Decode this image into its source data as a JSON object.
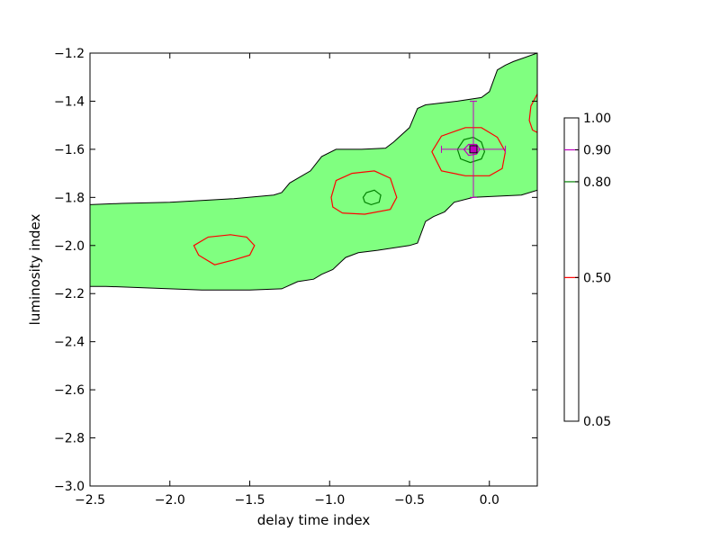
{
  "chart_data": {
    "type": "contour",
    "xlabel": "delay time index",
    "ylabel": "luminosity index",
    "xlim": [
      -2.5,
      0.3
    ],
    "ylim": [
      -3.0,
      -1.2
    ],
    "xticks": [
      -2.5,
      -2.0,
      -1.5,
      -1.0,
      -0.5,
      0.0
    ],
    "xtick_labels": [
      "−2.5",
      "−2.0",
      "−1.5",
      "−1.0",
      "−0.5",
      "0.0"
    ],
    "yticks": [
      -1.2,
      -1.4,
      -1.6,
      -1.8,
      -2.0,
      -2.2,
      -2.4,
      -2.6,
      -2.8,
      -3.0
    ],
    "ytick_labels": [
      "−1.2",
      "−1.4",
      "−1.6",
      "−1.8",
      "−2.0",
      "−2.2",
      "−2.4",
      "−2.6",
      "−2.8",
      "−3.0"
    ],
    "fill_color": "#80ff80",
    "levels": [
      {
        "level": 0.05,
        "color": "#000000",
        "fill": "#80ff80"
      },
      {
        "level": 0.5,
        "color": "#ff0000"
      },
      {
        "level": 0.8,
        "color": "#008000"
      },
      {
        "level": 0.9,
        "color": "#bf00bf"
      }
    ],
    "contours": {
      "outer_upper": [
        [
          -2.5,
          -1.83
        ],
        [
          -2.3,
          -1.825
        ],
        [
          -2.0,
          -1.82
        ],
        [
          -1.6,
          -1.805
        ],
        [
          -1.35,
          -1.79
        ],
        [
          -1.3,
          -1.78
        ],
        [
          -1.25,
          -1.74
        ],
        [
          -1.12,
          -1.69
        ],
        [
          -1.05,
          -1.63
        ],
        [
          -0.96,
          -1.6
        ],
        [
          -0.8,
          -1.6
        ],
        [
          -0.65,
          -1.595
        ],
        [
          -0.6,
          -1.57
        ],
        [
          -0.5,
          -1.51
        ],
        [
          -0.45,
          -1.43
        ],
        [
          -0.4,
          -1.415
        ],
        [
          -0.2,
          -1.4
        ],
        [
          -0.05,
          -1.385
        ],
        [
          0.0,
          -1.36
        ],
        [
          0.05,
          -1.27
        ],
        [
          0.1,
          -1.25
        ],
        [
          0.15,
          -1.235
        ],
        [
          0.3,
          -1.2
        ]
      ],
      "outer_lower": [
        [
          0.3,
          -1.77
        ],
        [
          0.2,
          -1.79
        ],
        [
          -0.1,
          -1.8
        ],
        [
          -0.22,
          -1.82
        ],
        [
          -0.28,
          -1.86
        ],
        [
          -0.35,
          -1.88
        ],
        [
          -0.4,
          -1.9
        ],
        [
          -0.45,
          -1.99
        ],
        [
          -0.5,
          -2.0
        ],
        [
          -0.7,
          -2.02
        ],
        [
          -0.82,
          -2.03
        ],
        [
          -0.9,
          -2.05
        ],
        [
          -0.98,
          -2.1
        ],
        [
          -1.05,
          -2.12
        ],
        [
          -1.1,
          -2.14
        ],
        [
          -1.2,
          -2.15
        ],
        [
          -1.3,
          -2.18
        ],
        [
          -1.5,
          -2.185
        ],
        [
          -1.8,
          -2.185
        ],
        [
          -2.0,
          -2.18
        ],
        [
          -2.4,
          -2.17
        ],
        [
          -2.5,
          -2.17
        ]
      ],
      "level_050": [
        [
          [
            -1.85,
            -2.0
          ],
          [
            -1.76,
            -1.965
          ],
          [
            -1.62,
            -1.955
          ],
          [
            -1.52,
            -1.965
          ],
          [
            -1.47,
            -2.0
          ],
          [
            -1.5,
            -2.04
          ],
          [
            -1.6,
            -2.06
          ],
          [
            -1.72,
            -2.08
          ],
          [
            -1.82,
            -2.04
          ]
        ],
        [
          [
            -0.99,
            -1.8
          ],
          [
            -0.96,
            -1.73
          ],
          [
            -0.86,
            -1.7
          ],
          [
            -0.72,
            -1.69
          ],
          [
            -0.62,
            -1.72
          ],
          [
            -0.58,
            -1.8
          ],
          [
            -0.62,
            -1.85
          ],
          [
            -0.78,
            -1.87
          ],
          [
            -0.92,
            -1.865
          ],
          [
            -0.98,
            -1.84
          ]
        ],
        [
          [
            -0.36,
            -1.61
          ],
          [
            -0.3,
            -1.545
          ],
          [
            -0.15,
            -1.51
          ],
          [
            -0.05,
            -1.51
          ],
          [
            0.05,
            -1.55
          ],
          [
            0.1,
            -1.61
          ],
          [
            0.08,
            -1.68
          ],
          [
            0.0,
            -1.71
          ],
          [
            -0.15,
            -1.71
          ],
          [
            -0.3,
            -1.69
          ]
        ],
        [
          [
            0.3,
            -1.37
          ],
          [
            0.26,
            -1.42
          ],
          [
            0.25,
            -1.48
          ],
          [
            0.27,
            -1.52
          ],
          [
            0.3,
            -1.53
          ]
        ]
      ],
      "level_080": [
        [
          [
            -0.79,
            -1.8
          ],
          [
            -0.77,
            -1.78
          ],
          [
            -0.72,
            -1.77
          ],
          [
            -0.68,
            -1.79
          ],
          [
            -0.69,
            -1.82
          ],
          [
            -0.74,
            -1.83
          ],
          [
            -0.78,
            -1.82
          ]
        ],
        [
          [
            -0.2,
            -1.6
          ],
          [
            -0.16,
            -1.56
          ],
          [
            -0.1,
            -1.55
          ],
          [
            -0.05,
            -1.57
          ],
          [
            -0.03,
            -1.61
          ],
          [
            -0.05,
            -1.64
          ],
          [
            -0.12,
            -1.655
          ],
          [
            -0.18,
            -1.64
          ]
        ]
      ],
      "level_090": [
        [
          [
            -0.16,
            -1.6
          ],
          [
            -0.13,
            -1.58
          ],
          [
            -0.08,
            -1.58
          ],
          [
            -0.06,
            -1.6
          ],
          [
            -0.08,
            -1.62
          ],
          [
            -0.13,
            -1.625
          ]
        ]
      ]
    },
    "best_fit": {
      "x": -0.1,
      "y": -1.6,
      "xerr": 0.2,
      "yerr": 0.2,
      "color": "#bf00bf",
      "edge_color": "#000000"
    },
    "colorbar": {
      "ticks": [
        0.05,
        0.5,
        0.8,
        0.9,
        1.0
      ],
      "tick_labels": [
        "0.05",
        "0.50",
        "0.80",
        "0.90",
        "1.00"
      ],
      "line_colors": [
        "#ff0000",
        "#008000",
        "#bf00bf"
      ]
    }
  }
}
